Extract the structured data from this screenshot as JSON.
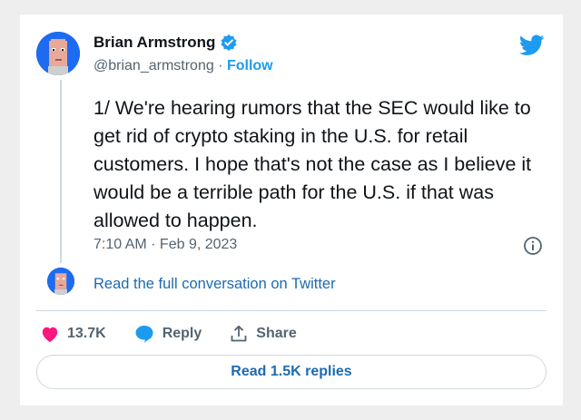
{
  "author": {
    "name": "Brian Armstrong",
    "handle": "@brian_armstrong",
    "separator": " · ",
    "follow_label": "Follow"
  },
  "tweet": {
    "text": "1/ We're hearing rumors that the SEC would like to get rid of crypto staking in the U.S. for retail customers. I hope that's not the case as I believe it would be a terrible path for the U.S. if that was allowed to happen.",
    "timestamp": "7:10 AM · Feb 9, 2023"
  },
  "conversation_link": "Read the full conversation on Twitter",
  "actions": {
    "likes": "13.7K",
    "reply_label": "Reply",
    "share_label": "Share"
  },
  "replies_button": "Read 1.5K replies",
  "colors": {
    "accent": "#1d9bf0",
    "like": "#f91880",
    "avatar_bg": "#1d6bf0"
  },
  "icons": [
    "verified-icon",
    "twitter-bird-icon",
    "info-icon",
    "heart-icon",
    "reply-bubble-icon",
    "share-icon"
  ]
}
